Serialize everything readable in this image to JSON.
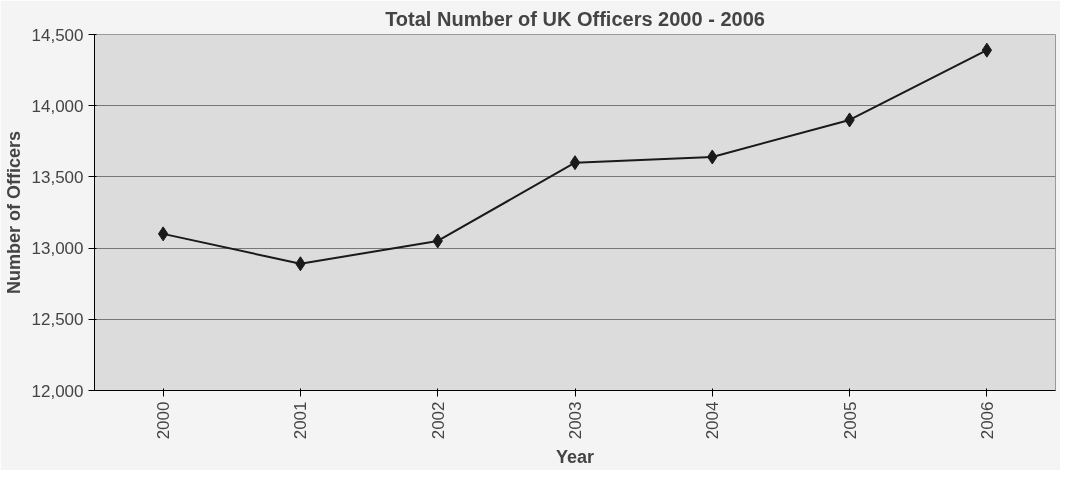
{
  "chart_data": {
    "type": "line",
    "title": "Total Number of UK Officers 2000 - 2006",
    "xlabel": "Year",
    "ylabel": "Number of Officers",
    "categories": [
      "2000",
      "2001",
      "2002",
      "2003",
      "2004",
      "2005",
      "2006"
    ],
    "series": [
      {
        "color": "#1a1a1a",
        "values": [
          13100,
          12890,
          13050,
          13600,
          13640,
          13900,
          14390
        ]
      }
    ],
    "ylim": [
      12000,
      14500
    ],
    "yticks": [
      {
        "value": 12000,
        "label": "12,000"
      },
      {
        "value": 12500,
        "label": "12,500"
      },
      {
        "value": 13000,
        "label": "13,000"
      },
      {
        "value": 13500,
        "label": "13,500"
      },
      {
        "value": 14000,
        "label": "14,000"
      },
      {
        "value": 14500,
        "label": "14,500"
      }
    ],
    "grid": "y",
    "marker": "diamond",
    "line_style": "solid"
  }
}
